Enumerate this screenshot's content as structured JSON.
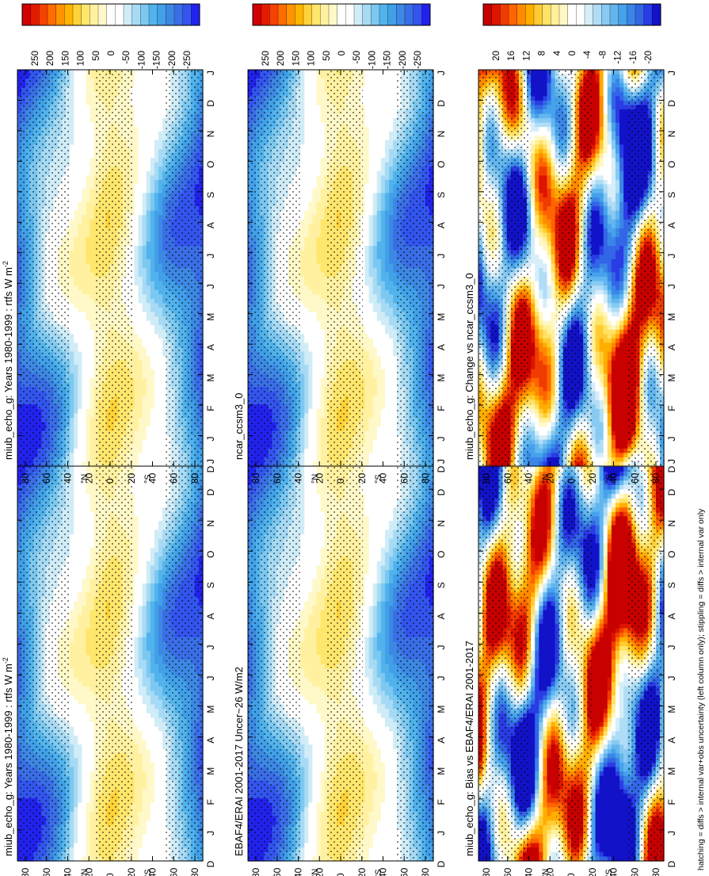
{
  "figure": {
    "footnote": "hatching = diffs > internal var+obs uncertainty (left column only); stippling = diffs > internal var only",
    "months": [
      "D",
      "J",
      "F",
      "M",
      "A",
      "M",
      "J",
      "J",
      "A",
      "S",
      "O",
      "N",
      "D",
      "J"
    ],
    "lat_ticks": [
      "80",
      "60",
      "40",
      "20",
      "0",
      "20",
      "40",
      "60",
      "80"
    ]
  },
  "colors": {
    "abs_scale": [
      "#2222ee",
      "#3355ee",
      "#3a6ee6",
      "#3d88e3",
      "#41a0e8",
      "#52b3ec",
      "#7cc8f0",
      "#a7daf4",
      "#d0ecf7",
      "#ffffff",
      "#ffffff",
      "#fff8c8",
      "#fff1a0",
      "#ffe66c",
      "#ffd23a",
      "#ffb400",
      "#ff9300",
      "#ff6c00",
      "#f54200",
      "#e41a00",
      "#d20000"
    ],
    "diff_scale": [
      "#1212c8",
      "#2a3ce4",
      "#3266e6",
      "#3a86e6",
      "#46a2ec",
      "#62b6ee",
      "#88caf2",
      "#b0ddf6",
      "#d6eefa",
      "#ffffff",
      "#ffffff",
      "#fff8c4",
      "#fff09a",
      "#ffe266",
      "#ffcc33",
      "#ffae00",
      "#ff8a00",
      "#ff6400",
      "#f03c00",
      "#dc1400",
      "#c80000"
    ]
  },
  "chart_data": [
    {
      "type": "heatmap",
      "panel": "top-left",
      "title": "miub_echo_g: Years 1980-1999 : rtfs W m",
      "title_superscript": "-2",
      "x_axis": "month (Dec to Jan cycle)",
      "y_axis": "latitude",
      "colorbar": {
        "labels": [
          "250",
          "200",
          "150",
          "100",
          "50",
          "0",
          "-50",
          "-100",
          "-150",
          "-200",
          "-250"
        ],
        "range": [
          -250,
          250
        ]
      },
      "field": "annual_cycle"
    },
    {
      "type": "heatmap",
      "panel": "top-right",
      "title": "miub_echo_g: Years 1980-1999 : rtfs W m",
      "title_superscript": "-2",
      "x_axis": "month (Dec to Jan cycle)",
      "y_axis": "latitude",
      "colorbar": {
        "labels": [
          "250",
          "200",
          "150",
          "100",
          "50",
          "0",
          "-50",
          "-100",
          "-150",
          "-200",
          "-250"
        ],
        "range": [
          -250,
          250
        ]
      },
      "field": "annual_cycle"
    },
    {
      "type": "heatmap",
      "panel": "middle-left",
      "title": "EBAF4/ERAI 2001-2017 Uncer~26 W/m2",
      "title_superscript": "",
      "x_axis": "month (Dec to Jan cycle)",
      "y_axis": "latitude",
      "colorbar": {
        "labels": [
          "250",
          "200",
          "150",
          "100",
          "50",
          "0",
          "-50",
          "-100",
          "-150",
          "-200",
          "-250"
        ],
        "range": [
          -250,
          250
        ]
      },
      "field": "annual_cycle"
    },
    {
      "type": "heatmap",
      "panel": "middle-right",
      "title": "ncar_ccsm3_0",
      "title_superscript": "",
      "x_axis": "month (Dec to Jan cycle)",
      "y_axis": "latitude",
      "colorbar": {
        "labels": [
          "250",
          "200",
          "150",
          "100",
          "50",
          "0",
          "-50",
          "-100",
          "-150",
          "-200",
          "-250"
        ],
        "range": [
          -250,
          250
        ]
      },
      "field": "annual_cycle"
    },
    {
      "type": "heatmap",
      "panel": "bottom-left",
      "title": "miub_echo_g: Bias vs EBAF4/ERAI 2001-2017",
      "title_superscript": "",
      "x_axis": "month (Dec to Jan cycle)",
      "y_axis": "latitude",
      "colorbar": {
        "labels": [
          "20",
          "16",
          "12",
          "8",
          "4",
          "0",
          "-4",
          "-8",
          "-12",
          "-16",
          "-20"
        ],
        "range": [
          -20,
          20
        ]
      },
      "field": "bias"
    },
    {
      "type": "heatmap",
      "panel": "bottom-right",
      "title": "miub_echo_g: Change vs ncar_ccsm3_0",
      "title_superscript": "",
      "x_axis": "month (Dec to Jan cycle)",
      "y_axis": "latitude",
      "colorbar": {
        "labels": [
          "20",
          "16",
          "12",
          "8",
          "4",
          "0",
          "-4",
          "-8",
          "-12",
          "-16",
          "-20"
        ],
        "range": [
          -20,
          20
        ]
      },
      "field": "change"
    }
  ]
}
